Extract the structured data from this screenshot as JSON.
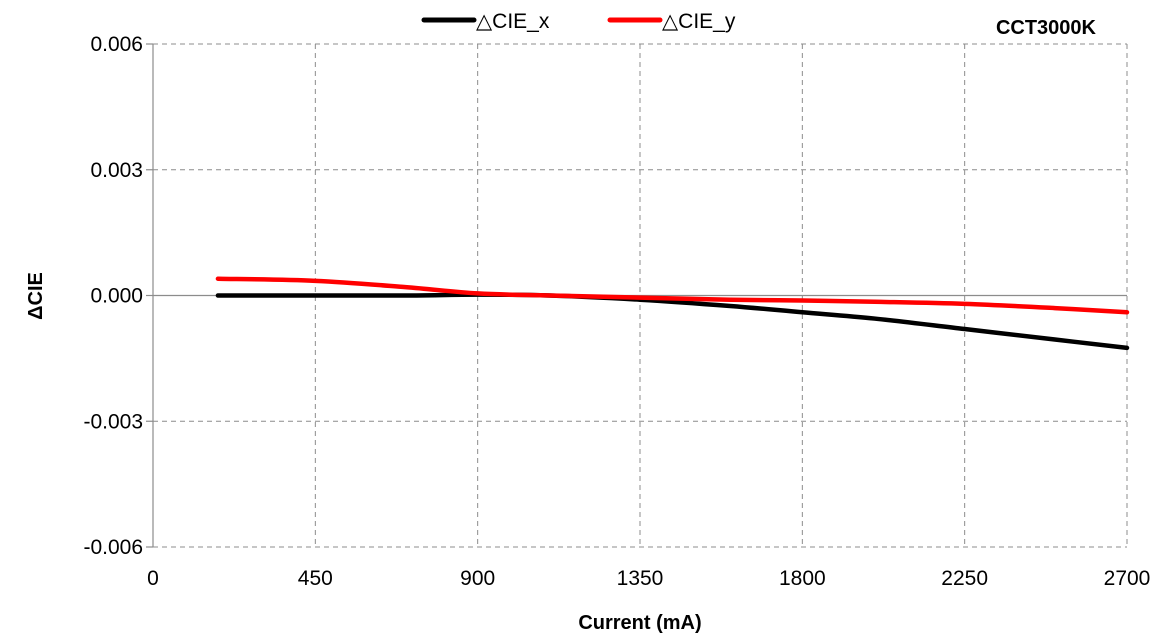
{
  "chart_data": {
    "type": "line",
    "title": "",
    "annotation": "CCT3000K",
    "xlabel": "Current (mA)",
    "ylabel": "ΔCIE",
    "xlim": [
      0,
      2700
    ],
    "ylim": [
      -0.006,
      0.006
    ],
    "x_ticks": [
      0,
      450,
      900,
      1350,
      1800,
      2250,
      2700
    ],
    "y_ticks": [
      -0.006,
      -0.003,
      0.0,
      0.003,
      0.006
    ],
    "y_tick_labels": [
      "-0.006",
      "-0.003",
      "0.000",
      "0.003",
      "0.006"
    ],
    "grid": true,
    "legend_position": "top",
    "series": [
      {
        "name": "△CIE_x",
        "color": "#000000",
        "x": [
          180,
          450,
          700,
          900,
          1100,
          1350,
          1600,
          1800,
          2000,
          2250,
          2500,
          2700
        ],
        "y": [
          0.0,
          0.0,
          0.0,
          2e-05,
          0.0,
          -0.0001,
          -0.00025,
          -0.0004,
          -0.00055,
          -0.0008,
          -0.00105,
          -0.00125
        ]
      },
      {
        "name": "△CIE_y",
        "color": "#ff0000",
        "x": [
          180,
          450,
          700,
          900,
          1100,
          1350,
          1600,
          1800,
          2000,
          2250,
          2500,
          2700
        ],
        "y": [
          0.0004,
          0.00035,
          0.0002,
          5e-05,
          0.0,
          -5e-05,
          -0.0001,
          -0.00012,
          -0.00015,
          -0.0002,
          -0.0003,
          -0.0004
        ]
      }
    ]
  }
}
